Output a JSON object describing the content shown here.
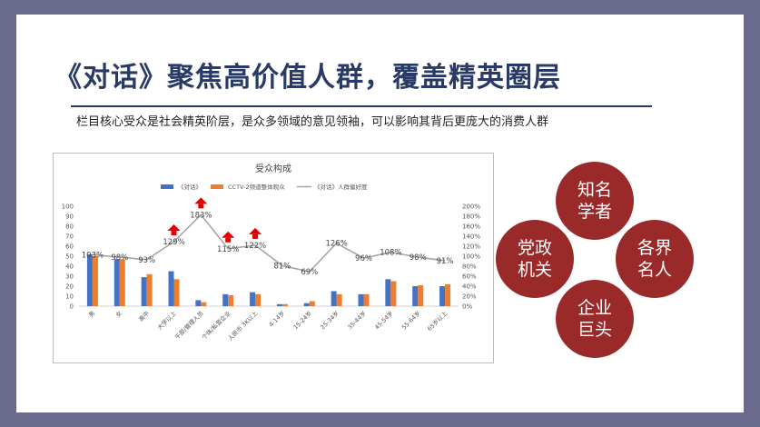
{
  "slide": {
    "title": "《对话》聚焦高价值人群，覆盖精英圈层",
    "subtitle": "栏目核心受众是社会精英阶层，是众多领域的意见领袖，可以影响其背后更庞大的消费人群"
  },
  "circles": [
    {
      "label": "知名\n学者"
    },
    {
      "label": "党政\n机关"
    },
    {
      "label": "各界\n名人"
    },
    {
      "label": "企业\n巨头"
    }
  ],
  "chart_data": {
    "type": "bar",
    "title": "受众构成",
    "categories": [
      "男",
      "女",
      "高中",
      "大学以上",
      "干部/管理人员",
      "个体/私营企业",
      "人民币 3K以上",
      "4-14岁",
      "15-24岁",
      "25-34岁",
      "35-44岁",
      "45-54岁",
      "55-64岁",
      "65岁以上"
    ],
    "series": [
      {
        "name": "《对话》",
        "kind": "bar",
        "axis": "left",
        "color": "#4472c4",
        "values": [
          52,
          47,
          29,
          35,
          6,
          12,
          14,
          2,
          3,
          15,
          12,
          27,
          20,
          20
        ]
      },
      {
        "name": "CCTV-2频道整体观众",
        "kind": "bar",
        "axis": "left",
        "color": "#ed7d31",
        "values": [
          50,
          47,
          32,
          27,
          4,
          11,
          12,
          2,
          5,
          12,
          12,
          25,
          21,
          22
        ]
      },
      {
        "name": "《对话》人群偏好度",
        "kind": "line",
        "axis": "right",
        "color": "#a6a6a6",
        "values": [
          103,
          98,
          93,
          129,
          183,
          115,
          122,
          81,
          69,
          126,
          96,
          108,
          98,
          91
        ],
        "labels": [
          "103%",
          "98%",
          "93%",
          "129%",
          "183%",
          "115%",
          "122%",
          "81%",
          "69%",
          "126%",
          "96%",
          "108%",
          "98%",
          "91%"
        ]
      }
    ],
    "highlighted_points": [
      3,
      4,
      5,
      6
    ],
    "ylim_left": [
      0,
      100
    ],
    "yticks_left": [
      "0",
      "10",
      "20",
      "30",
      "40",
      "50",
      "60",
      "70",
      "80",
      "90",
      "100"
    ],
    "ylim_right": [
      0,
      200
    ],
    "yticks_right": [
      "0%",
      "20%",
      "40%",
      "60%",
      "80%",
      "100%",
      "120%",
      "140%",
      "160%",
      "180%",
      "200%"
    ],
    "legend_position": "top"
  }
}
